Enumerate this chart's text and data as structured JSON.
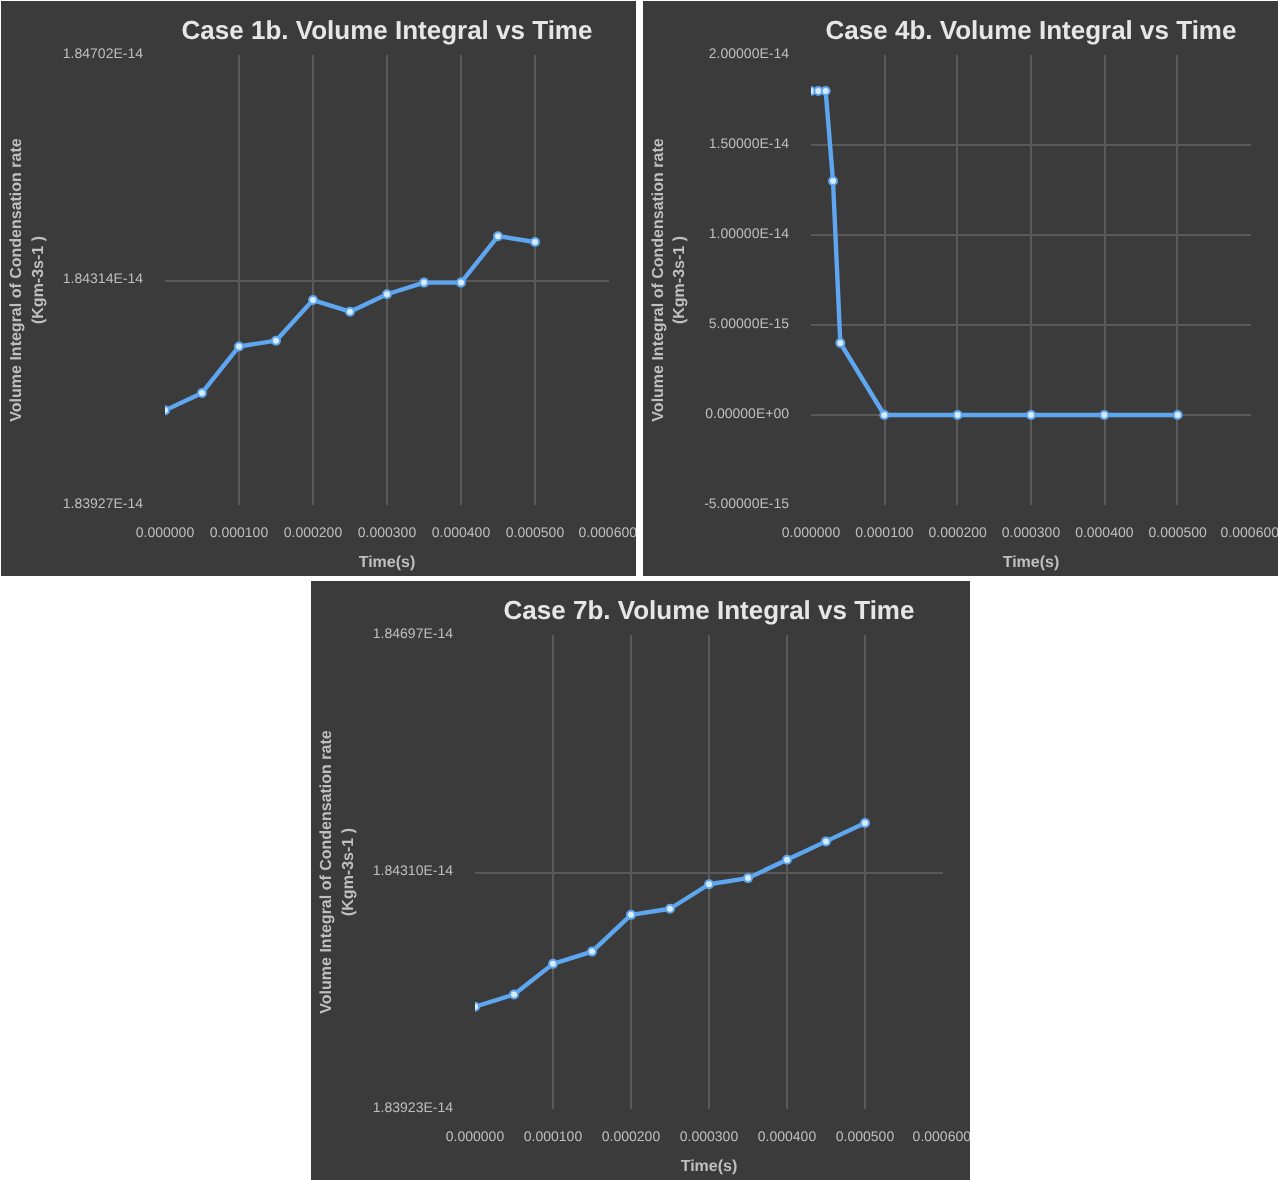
{
  "chart_data": [
    {
      "type": "line",
      "title": "Case 1b. Volume Integral vs Time",
      "xlabel": "Time(s)",
      "ylabel": "Volume Integral of Condensation rate\n(Kgm-3s-1 )",
      "x": [
        0,
        5e-05,
        0.0001,
        0.00015,
        0.0002,
        0.00025,
        0.0003,
        0.00035,
        0.0004,
        0.00045,
        0.0005
      ],
      "series": [
        {
          "color": "#5ea6f0",
          "values": [
            1.8409e-14,
            1.8412e-14,
            1.842e-14,
            1.8421e-14,
            1.8428e-14,
            1.8426e-14,
            1.8429e-14,
            1.8431e-14,
            1.8431e-14,
            1.8439e-14,
            1.8438e-14
          ]
        }
      ],
      "xlim": [
        0,
        0.0006
      ],
      "xticks": [
        {
          "value": 0,
          "label": "0.000000"
        },
        {
          "value": 0.0001,
          "label": "0.000100"
        },
        {
          "value": 0.0002,
          "label": "0.000200"
        },
        {
          "value": 0.0003,
          "label": "0.000300"
        },
        {
          "value": 0.0004,
          "label": "0.000400"
        },
        {
          "value": 0.0005,
          "label": "0.000500"
        },
        {
          "value": 0.0006,
          "label": "0.000600"
        }
      ],
      "ylim": [
        1.83927e-14,
        1.84702e-14
      ],
      "yticks": [
        {
          "value": 1.83927e-14,
          "label": "1.83927E-14"
        },
        {
          "value": 1.84314e-14,
          "label": "1.84314E-14"
        },
        {
          "value": 1.84702e-14,
          "label": "1.84702E-14"
        }
      ],
      "grid": true,
      "marker": "circle",
      "line_style": "solid"
    },
    {
      "type": "line",
      "title": "Case 4b. Volume Integral vs Time",
      "xlabel": "Time(s)",
      "ylabel": "Volume Integral of Condensation rate\n(Kgm-3s-1 )",
      "x": [
        0,
        1e-05,
        2e-05,
        3e-05,
        4e-05,
        0.0001,
        0.0002,
        0.0003,
        0.0004,
        0.0005
      ],
      "series": [
        {
          "color": "#5ea6f0",
          "values": [
            1.8e-14,
            1.8e-14,
            1.8e-14,
            1.3e-14,
            4e-15,
            0,
            0,
            0,
            0,
            0
          ]
        }
      ],
      "xlim": [
        0,
        0.0006
      ],
      "xticks": [
        {
          "value": 0,
          "label": "0.000000"
        },
        {
          "value": 0.0001,
          "label": "0.000100"
        },
        {
          "value": 0.0002,
          "label": "0.000200"
        },
        {
          "value": 0.0003,
          "label": "0.000300"
        },
        {
          "value": 0.0004,
          "label": "0.000400"
        },
        {
          "value": 0.0005,
          "label": "0.000500"
        },
        {
          "value": 0.0006,
          "label": "0.000600"
        }
      ],
      "ylim": [
        -5e-15,
        2e-14
      ],
      "yticks": [
        {
          "value": -5e-15,
          "label": "-5.00000E-15"
        },
        {
          "value": 0,
          "label": "0.00000E+00"
        },
        {
          "value": 5e-15,
          "label": "5.00000E-15"
        },
        {
          "value": 1e-14,
          "label": "1.00000E-14"
        },
        {
          "value": 1.5e-14,
          "label": "1.50000E-14"
        },
        {
          "value": 2e-14,
          "label": "2.00000E-14"
        }
      ],
      "grid": true,
      "marker": "circle",
      "line_style": "solid"
    },
    {
      "type": "line",
      "title": "Case 7b. Volume Integral vs Time",
      "xlabel": "Time(s)",
      "ylabel": "Volume Integral of Condensation rate\n(Kgm-3s-1 )",
      "x": [
        0,
        5e-05,
        0.0001,
        0.00015,
        0.0002,
        0.00025,
        0.0003,
        0.00035,
        0.0004,
        0.00045,
        0.0005
      ],
      "series": [
        {
          "color": "#5ea6f0",
          "values": [
            1.8409e-14,
            1.8411e-14,
            1.8416e-14,
            1.8418e-14,
            1.8424e-14,
            1.8425e-14,
            1.8429e-14,
            1.843e-14,
            1.8433e-14,
            1.8436e-14,
            1.8439e-14
          ]
        }
      ],
      "xlim": [
        0,
        0.0006
      ],
      "xticks": [
        {
          "value": 0,
          "label": "0.000000"
        },
        {
          "value": 0.0001,
          "label": "0.000100"
        },
        {
          "value": 0.0002,
          "label": "0.000200"
        },
        {
          "value": 0.0003,
          "label": "0.000300"
        },
        {
          "value": 0.0004,
          "label": "0.000400"
        },
        {
          "value": 0.0005,
          "label": "0.000500"
        },
        {
          "value": 0.0006,
          "label": "0.000600"
        }
      ],
      "ylim": [
        1.83923e-14,
        1.84697e-14
      ],
      "yticks": [
        {
          "value": 1.83923e-14,
          "label": "1.83923E-14"
        },
        {
          "value": 1.8431e-14,
          "label": "1.84310E-14"
        },
        {
          "value": 1.84697e-14,
          "label": "1.84697E-14"
        }
      ],
      "grid": true,
      "marker": "circle",
      "line_style": "solid"
    }
  ]
}
